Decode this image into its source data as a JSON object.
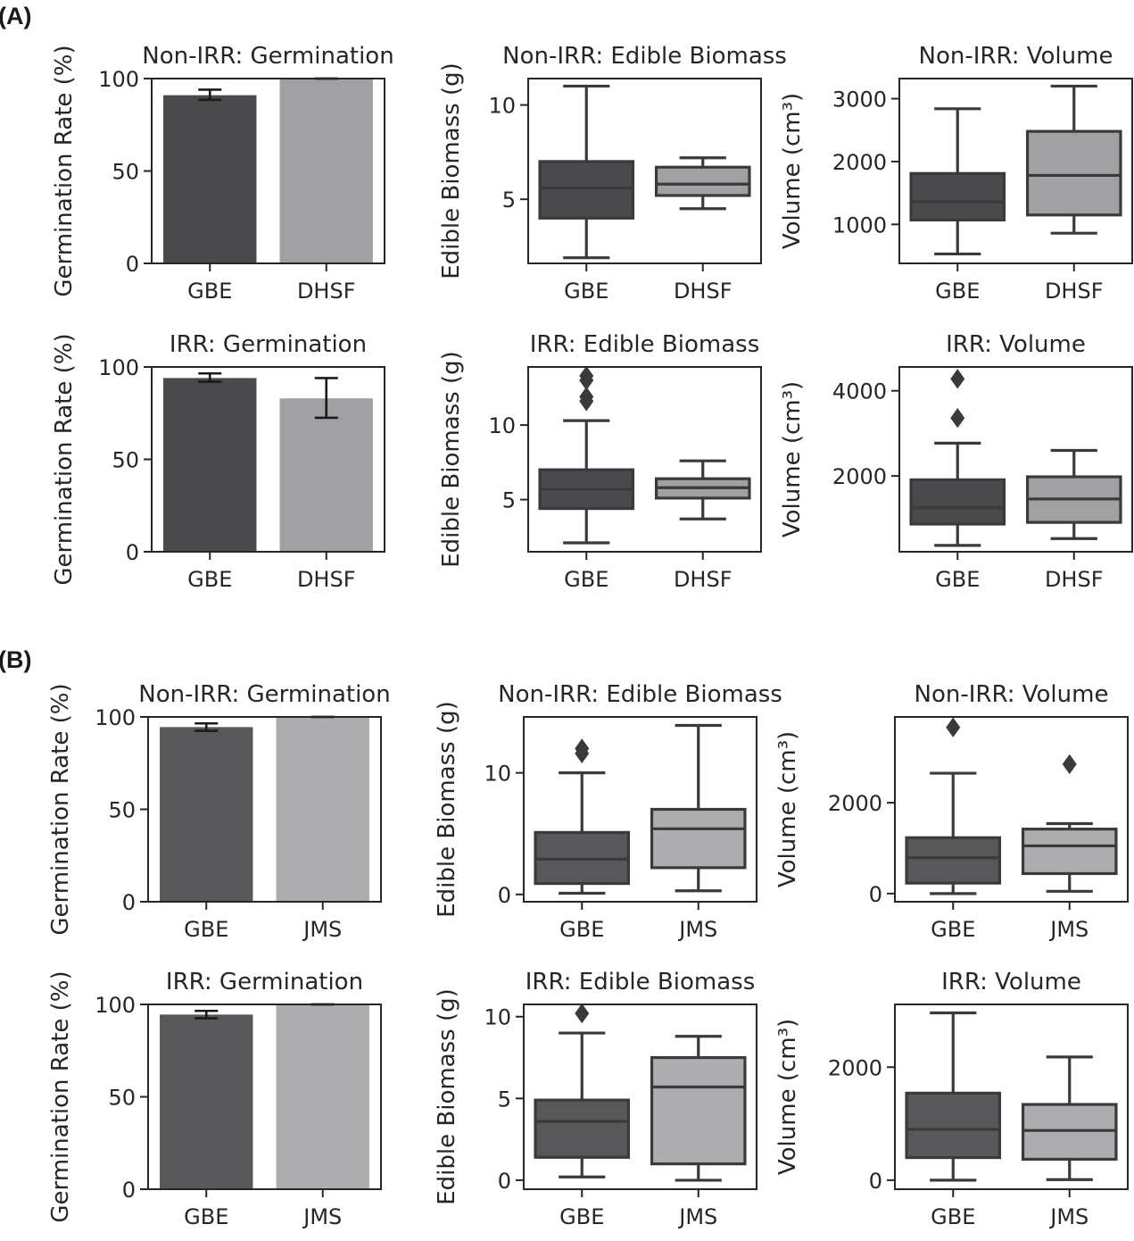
{
  "figure": {
    "panels": [
      {
        "label": "(A)",
        "comparison": [
          "GBE",
          "DHSF"
        ]
      },
      {
        "label": "(B)",
        "comparison": [
          "GBE",
          "JMS"
        ]
      }
    ],
    "colors": {
      "dark": "#4a4a4c",
      "light": "#a1a1a3",
      "lightB": "#adadaf",
      "darkB": "#58585a",
      "line": "#3a3a3a",
      "axis": "#262626"
    }
  },
  "chart_data": [
    {
      "id": "A-nonirr-germ",
      "panel": "(A)",
      "type": "bar",
      "title": "Non-IRR: Germination",
      "ylabel": "Germination Rate (%)",
      "categories": [
        "GBE",
        "DHSF"
      ],
      "values": [
        91,
        100
      ],
      "errors": [
        [
          88.5,
          94
        ],
        [
          100,
          100
        ]
      ],
      "ylim": [
        0,
        100
      ],
      "yticks": [
        0,
        50,
        100
      ]
    },
    {
      "id": "A-nonirr-bio",
      "panel": "(A)",
      "type": "box",
      "title": "Non-IRR: Edible Biomass",
      "ylabel": "Edible Biomass (g)",
      "categories": [
        "GBE",
        "DHSF"
      ],
      "boxes": [
        {
          "whislo": 1.9,
          "q1": 4.0,
          "med": 5.6,
          "q3": 7.0,
          "whishi": 11.0,
          "fliers": []
        },
        {
          "whislo": 4.5,
          "q1": 5.2,
          "med": 5.8,
          "q3": 6.7,
          "whishi": 7.2,
          "fliers": []
        }
      ],
      "ylim": [
        1.6,
        11.4
      ],
      "yticks": [
        5,
        10
      ]
    },
    {
      "id": "A-nonirr-vol",
      "panel": "(A)",
      "type": "box",
      "title": "Non-IRR: Volume",
      "ylabel": "Volume (cm³)",
      "categories": [
        "GBE",
        "DHSF"
      ],
      "boxes": [
        {
          "whislo": 530,
          "q1": 1070,
          "med": 1360,
          "q3": 1810,
          "whishi": 2840,
          "fliers": []
        },
        {
          "whislo": 860,
          "q1": 1150,
          "med": 1780,
          "q3": 2480,
          "whishi": 3200,
          "fliers": []
        }
      ],
      "ylim": [
        380,
        3320
      ],
      "yticks": [
        1000,
        2000,
        3000
      ]
    },
    {
      "id": "A-irr-germ",
      "panel": "(A)",
      "type": "bar",
      "title": "IRR: Germination",
      "ylabel": "Germination Rate (%)",
      "categories": [
        "GBE",
        "DHSF"
      ],
      "values": [
        94,
        83
      ],
      "errors": [
        [
          92,
          96.5
        ],
        [
          72.5,
          94
        ]
      ],
      "ylim": [
        0,
        100
      ],
      "yticks": [
        0,
        50,
        100
      ]
    },
    {
      "id": "A-irr-bio",
      "panel": "(A)",
      "type": "box",
      "title": "IRR: Edible Biomass",
      "ylabel": "Edible Biomass (g)",
      "categories": [
        "GBE",
        "DHSF"
      ],
      "boxes": [
        {
          "whislo": 2.1,
          "q1": 4.4,
          "med": 5.7,
          "q3": 7.0,
          "whishi": 10.3,
          "fliers": [
            11.6,
            11.9,
            13.0,
            13.3
          ]
        },
        {
          "whislo": 3.7,
          "q1": 5.1,
          "med": 5.8,
          "q3": 6.4,
          "whishi": 7.6,
          "fliers": []
        }
      ],
      "ylim": [
        1.5,
        13.9
      ],
      "yticks": [
        5,
        10
      ]
    },
    {
      "id": "A-irr-vol",
      "panel": "(A)",
      "type": "box",
      "title": "IRR: Volume",
      "ylabel": "Volume (cm³)",
      "categories": [
        "GBE",
        "DHSF"
      ],
      "boxes": [
        {
          "whislo": 370,
          "q1": 870,
          "med": 1250,
          "q3": 1910,
          "whishi": 2770,
          "fliers": [
            3360,
            4280
          ]
        },
        {
          "whislo": 530,
          "q1": 910,
          "med": 1460,
          "q3": 1980,
          "whishi": 2600,
          "fliers": []
        }
      ],
      "ylim": [
        220,
        4560
      ],
      "yticks": [
        2000,
        4000
      ]
    },
    {
      "id": "B-nonirr-germ",
      "panel": "(B)",
      "type": "bar",
      "title": "Non-IRR: Germination",
      "ylabel": "Germination Rate (%)",
      "categories": [
        "GBE",
        "JMS"
      ],
      "values": [
        94.5,
        100
      ],
      "errors": [
        [
          92.5,
          96.5
        ],
        [
          100,
          100
        ]
      ],
      "ylim": [
        0,
        100
      ],
      "yticks": [
        0,
        50,
        100
      ]
    },
    {
      "id": "B-nonirr-bio",
      "panel": "(B)",
      "type": "box",
      "title": "Non-IRR: Edible Biomass",
      "ylabel": "Edible Biomass (g)",
      "categories": [
        "GBE",
        "JMS"
      ],
      "boxes": [
        {
          "whislo": 0.1,
          "q1": 0.9,
          "med": 2.9,
          "q3": 5.1,
          "whishi": 10.0,
          "fliers": [
            11.6,
            12.0
          ]
        },
        {
          "whislo": 0.3,
          "q1": 2.2,
          "med": 5.4,
          "q3": 7.0,
          "whishi": 13.9,
          "fliers": []
        }
      ],
      "ylim": [
        -0.6,
        14.6
      ],
      "yticks": [
        0,
        10
      ]
    },
    {
      "id": "B-nonirr-vol",
      "panel": "(B)",
      "type": "box",
      "title": "Non-IRR: Volume",
      "ylabel": "Volume (cm³)",
      "categories": [
        "GBE",
        "JMS"
      ],
      "boxes": [
        {
          "whislo": 0,
          "q1": 230,
          "med": 790,
          "q3": 1230,
          "whishi": 2650,
          "fliers": [
            3660
          ]
        },
        {
          "whislo": 50,
          "q1": 440,
          "med": 1050,
          "q3": 1420,
          "whishi": 1540,
          "fliers": [
            2850
          ]
        }
      ],
      "ylim": [
        -180,
        3890
      ],
      "yticks": [
        0,
        2000
      ]
    },
    {
      "id": "B-irr-germ",
      "panel": "(B)",
      "type": "bar",
      "title": "IRR: Germination",
      "ylabel": "Germination Rate (%)",
      "categories": [
        "GBE",
        "JMS"
      ],
      "values": [
        94.5,
        100
      ],
      "errors": [
        [
          92.5,
          96.5
        ],
        [
          100,
          100
        ]
      ],
      "ylim": [
        0,
        100
      ],
      "yticks": [
        0,
        50,
        100
      ]
    },
    {
      "id": "B-irr-bio",
      "panel": "(B)",
      "type": "box",
      "title": "IRR: Edible Biomass",
      "ylabel": "Edible Biomass (g)",
      "categories": [
        "GBE",
        "JMS"
      ],
      "boxes": [
        {
          "whislo": 0.2,
          "q1": 1.4,
          "med": 3.6,
          "q3": 4.9,
          "whishi": 9.0,
          "fliers": [
            10.2
          ]
        },
        {
          "whislo": 0.0,
          "q1": 1.0,
          "med": 5.7,
          "q3": 7.5,
          "whishi": 8.8,
          "fliers": []
        }
      ],
      "ylim": [
        -0.55,
        10.75
      ],
      "yticks": [
        0,
        5,
        10
      ]
    },
    {
      "id": "B-irr-vol",
      "panel": "(B)",
      "type": "box",
      "title": "IRR: Volume",
      "ylabel": "Volume (cm³)",
      "categories": [
        "GBE",
        "JMS"
      ],
      "boxes": [
        {
          "whislo": 0,
          "q1": 400,
          "med": 900,
          "q3": 1540,
          "whishi": 2960,
          "fliers": []
        },
        {
          "whislo": 10,
          "q1": 370,
          "med": 880,
          "q3": 1340,
          "whishi": 2180,
          "fliers": []
        }
      ],
      "ylim": [
        -160,
        3110
      ],
      "yticks": [
        0,
        2000
      ]
    }
  ]
}
